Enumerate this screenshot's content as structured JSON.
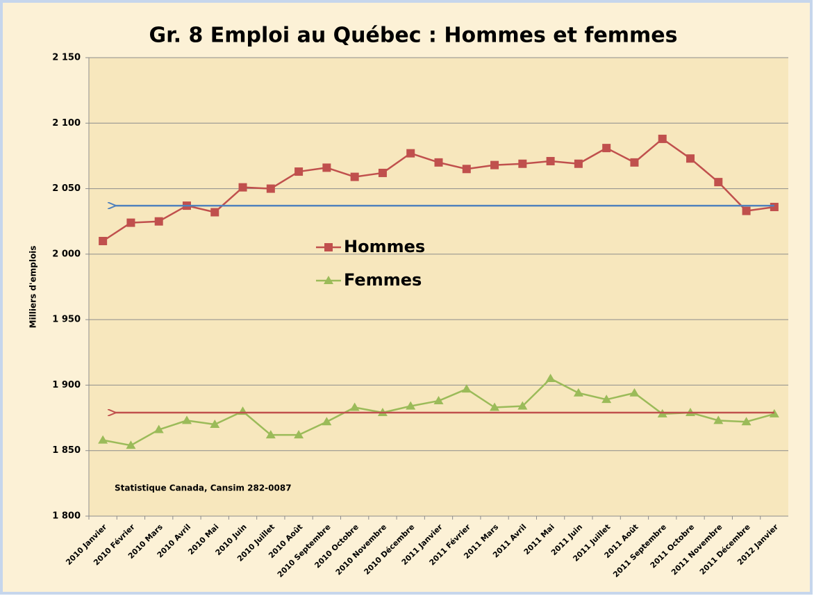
{
  "chart_data": {
    "type": "line",
    "title": "Gr. 8 Emploi au Québec : Hommes et femmes",
    "y_label": "Milliers d'emplois",
    "annotation": "Statistique Canada, Cansim 282-0087",
    "categories": [
      "2010 Janvier",
      "2010 Février",
      "2010 Mars",
      "2010 Avril",
      "2010 Mai",
      "2010 Juin",
      "2010 Juillet",
      "2010 Août",
      "2010 Septembre",
      "2010 Octobre",
      "2010 Novembre",
      "2010 Décembre",
      "2011 Janvier",
      "2011 Février",
      "2011 Mars",
      "2011 Avril",
      "2011 Mai",
      "2011 Juin",
      "2011 Juillet",
      "2011 Août",
      "2011 Septembre",
      "2011 Octobre",
      "2011 Novembre",
      "2011 Décembre",
      "2012 Janvier"
    ],
    "series": [
      {
        "name": "Hommes",
        "color": "#c0504d",
        "marker": "square",
        "values": [
          2010,
          2024,
          2025,
          2037,
          2032,
          2051,
          2050,
          2063,
          2066,
          2059,
          2062,
          2077,
          2070,
          2065,
          2068,
          2069,
          2071,
          2069,
          2081,
          2070,
          2088,
          2073,
          2055,
          2033,
          2036
        ]
      },
      {
        "name": "Femmes",
        "color": "#9bbb59",
        "marker": "triangle",
        "values": [
          1858,
          1854,
          1866,
          1873,
          1870,
          1880,
          1862,
          1862,
          1872,
          1883,
          1879,
          1884,
          1888,
          1897,
          1883,
          1884,
          1905,
          1894,
          1889,
          1894,
          1878,
          1879,
          1873,
          1872,
          1878
        ]
      }
    ],
    "reference_lines": [
      {
        "value": 2037,
        "color": "#4f81bd"
      },
      {
        "value": 1879,
        "color": "#c0504d"
      }
    ],
    "ylim": [
      1800,
      2150
    ],
    "yticks": [
      {
        "value": 1800,
        "label": "1 800"
      },
      {
        "value": 1850,
        "label": "1 850"
      },
      {
        "value": 1900,
        "label": "1 900"
      },
      {
        "value": 1950,
        "label": "1 950"
      },
      {
        "value": 2000,
        "label": "2 000"
      },
      {
        "value": 2050,
        "label": "2 050"
      },
      {
        "value": 2100,
        "label": "2 100"
      },
      {
        "value": 2150,
        "label": "2 150"
      }
    ],
    "grid": true,
    "legend_position": "center"
  }
}
